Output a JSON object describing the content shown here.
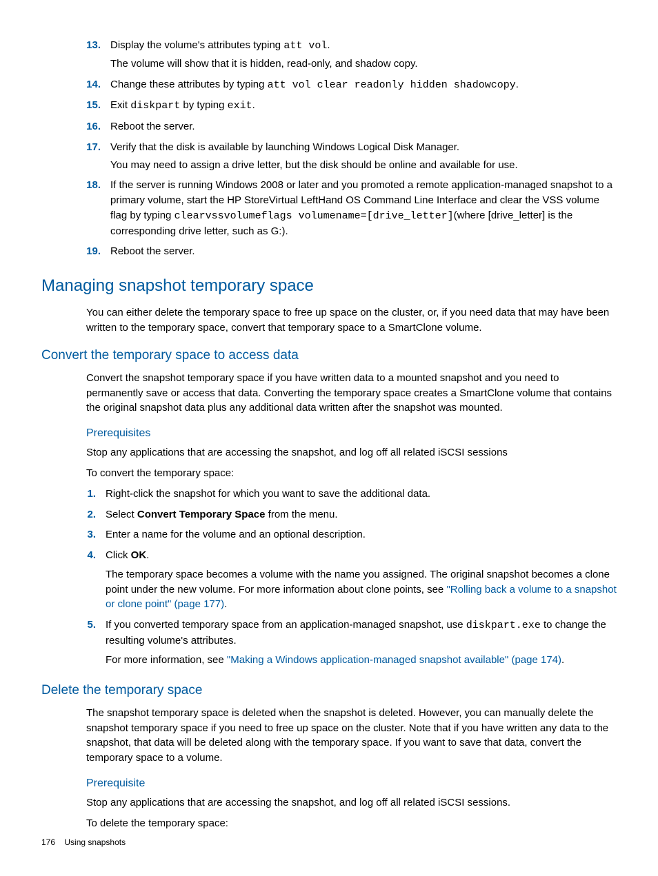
{
  "list1": {
    "items": [
      {
        "num": "13.",
        "line1_pre": "Display the volume's attributes typing ",
        "line1_code": "att vol",
        "line1_post": ".",
        "line2": "The volume will show that it is hidden, read-only, and shadow copy."
      },
      {
        "num": "14.",
        "line1_pre": "Change these attributes by typing ",
        "line1_code": "att vol clear readonly hidden shadowcopy",
        "line1_post": "."
      },
      {
        "num": "15.",
        "line1_pre": "Exit ",
        "line1_code": "diskpart",
        "line1_mid": " by typing ",
        "line1_code2": "exit",
        "line1_post": "."
      },
      {
        "num": "16.",
        "line1": "Reboot the server."
      },
      {
        "num": "17.",
        "line1": "Verify that the disk is available by launching Windows Logical Disk Manager.",
        "line2": "You may need to assign a drive letter, but the disk should be online and available for use."
      },
      {
        "num": "18.",
        "line1_pre": "If the server is running Windows 2008 or later and you promoted a remote application-managed snapshot to a primary volume, start the HP StoreVirtual LeftHand OS Command Line Interface and clear the VSS volume flag by typing ",
        "line1_code": "clearvssvolumeflags volumename=[drive_letter]",
        "line1_post": "(where [drive_letter] is the corresponding drive letter, such as G:)."
      },
      {
        "num": "19.",
        "line1": "Reboot the server."
      }
    ]
  },
  "h2_1": "Managing snapshot temporary space",
  "p1": "You can either delete the temporary space to free up space on the cluster, or, if you need data that may have been written to the temporary space, convert that temporary space to a SmartClone volume.",
  "h3_1": "Convert the temporary space to access data",
  "p2": "Convert the snapshot temporary space if you have written data to a mounted snapshot and you need to permanently save or access that data. Converting the temporary space creates a SmartClone volume that contains the original snapshot data plus any additional data written after the snapshot was mounted.",
  "h4_1": "Prerequisites",
  "p3": "Stop any applications that are accessing the snapshot, and log off all related iSCSI sessions",
  "p4": "To convert the temporary space:",
  "list2": {
    "items": [
      {
        "num": "1.",
        "line1": "Right-click the snapshot for which you want to save the additional data."
      },
      {
        "num": "2.",
        "line1_pre": "Select ",
        "line1_bold": "Convert Temporary Space",
        "line1_post": " from the menu."
      },
      {
        "num": "3.",
        "line1": "Enter a name for the volume and an optional description."
      },
      {
        "num": "4.",
        "line1_pre": "Click ",
        "line1_bold": "OK",
        "line1_post": ".",
        "para2_pre": "The temporary space becomes a volume with the name you assigned. The original snapshot becomes a clone point under the new volume. For more information about clone points, see ",
        "para2_link": "\"Rolling back a volume to a snapshot or clone point\" (page 177)",
        "para2_post": "."
      },
      {
        "num": "5.",
        "line1_pre": "If you converted temporary space from an application-managed snapshot, use ",
        "line1_code": "diskpart.exe",
        "line1_post": " to change the resulting volume's attributes.",
        "para2_pre": "For more information, see ",
        "para2_link": "\"Making a Windows application-managed snapshot available\" (page 174)",
        "para2_post": "."
      }
    ]
  },
  "h3_2": "Delete the temporary space",
  "p5": "The snapshot temporary space is deleted when the snapshot is deleted. However, you can manually delete the snapshot temporary space if you need to free up space on the cluster. Note that if you have written any data to the snapshot, that data will be deleted along with the temporary space. If you want to save that data, convert the temporary space to a volume.",
  "h4_2": "Prerequisite",
  "p6": "Stop any applications that are accessing the snapshot, and log off all related iSCSI sessions.",
  "p7": "To delete the temporary space:",
  "footer": {
    "page": "176",
    "section": "Using snapshots"
  }
}
